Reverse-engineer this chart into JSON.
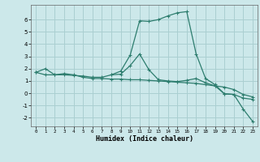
{
  "xlabel": "Humidex (Indice chaleur)",
  "background_color": "#cce8ea",
  "grid_color": "#aacfd1",
  "line_color": "#2d7d6e",
  "xlim": [
    -0.5,
    23.5
  ],
  "ylim": [
    -2.7,
    7.2
  ],
  "xticks": [
    0,
    1,
    2,
    3,
    4,
    5,
    6,
    7,
    8,
    9,
    10,
    11,
    12,
    13,
    14,
    15,
    16,
    17,
    18,
    19,
    20,
    21,
    22,
    23
  ],
  "yticks": [
    -2,
    -1,
    0,
    1,
    2,
    3,
    4,
    5,
    6
  ],
  "series1_x": [
    0,
    1,
    2,
    3,
    4,
    5,
    6,
    7,
    8,
    9,
    10,
    11,
    12,
    13,
    14,
    15,
    16,
    17,
    18,
    19,
    20,
    21,
    22,
    23
  ],
  "series1_y": [
    1.7,
    2.0,
    1.5,
    1.6,
    1.5,
    1.3,
    1.2,
    1.2,
    1.15,
    1.15,
    1.1,
    1.1,
    1.05,
    1.0,
    0.95,
    0.9,
    0.85,
    0.8,
    0.7,
    0.6,
    0.5,
    0.3,
    -0.1,
    -0.3
  ],
  "series2_x": [
    0,
    1,
    2,
    3,
    4,
    5,
    6,
    7,
    8,
    9,
    10,
    11,
    12,
    13,
    14,
    15,
    16,
    17,
    18,
    19,
    20,
    21,
    22,
    23
  ],
  "series2_y": [
    1.7,
    1.5,
    1.5,
    1.5,
    1.45,
    1.4,
    1.3,
    1.3,
    1.5,
    1.8,
    3.1,
    5.9,
    5.85,
    6.0,
    6.3,
    6.55,
    6.65,
    3.2,
    1.2,
    0.7,
    -0.05,
    -0.1,
    -1.3,
    -2.3
  ],
  "series3_x": [
    8,
    9,
    10,
    11,
    12,
    13,
    14,
    15,
    16,
    17,
    18,
    19,
    20,
    21,
    22,
    23
  ],
  "series3_y": [
    1.5,
    1.55,
    2.25,
    3.2,
    1.9,
    1.1,
    1.0,
    0.95,
    1.05,
    1.2,
    0.85,
    0.6,
    -0.05,
    -0.1,
    -0.4,
    -0.5
  ]
}
